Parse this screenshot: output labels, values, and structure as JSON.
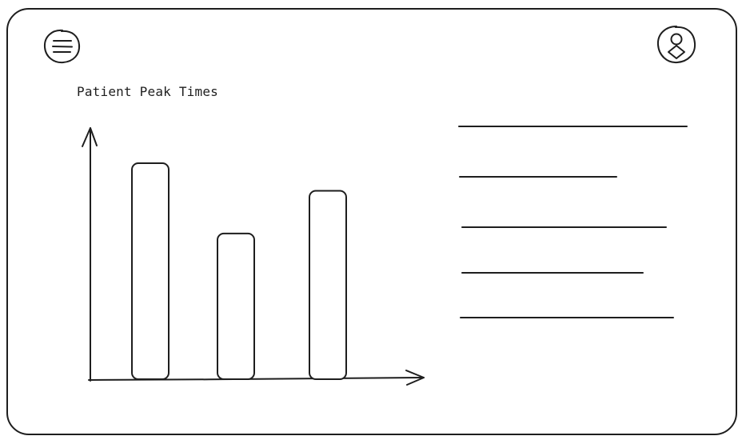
{
  "header": {
    "menu_icon": "hamburger-menu-icon",
    "profile_icon": "user-profile-icon"
  },
  "chart_data": {
    "type": "bar",
    "title": "Patient Peak Times",
    "categories": [
      "",
      "",
      ""
    ],
    "values": [
      86,
      58,
      75
    ],
    "ylim": [
      0,
      100
    ],
    "xlabel": "",
    "ylabel": "",
    "grid": false,
    "bar_fill": "#ffffff",
    "stroke": "#1e1e1e"
  },
  "placeholder_lines": {
    "count": 5,
    "color": "#1e1e1e"
  }
}
